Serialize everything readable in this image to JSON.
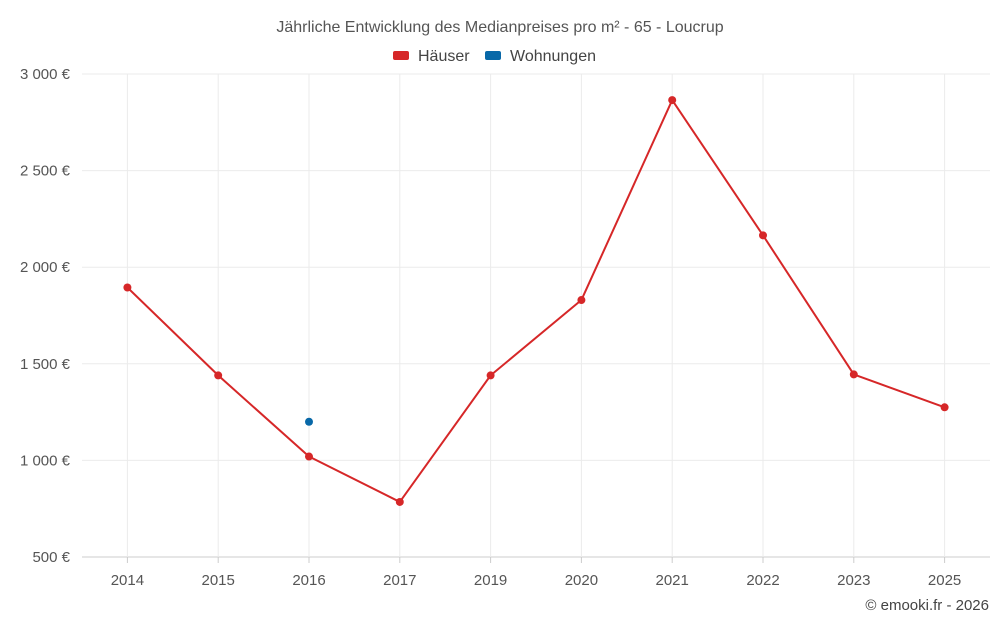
{
  "chart_data": {
    "type": "line",
    "title": "Jährliche Entwicklung des Medianpreises pro m² - 65 - Loucrup",
    "categories": [
      "2014",
      "2015",
      "2016",
      "2017",
      "2019",
      "2020",
      "2021",
      "2022",
      "2023",
      "2025"
    ],
    "series": [
      {
        "name": "Häuser",
        "color": "#d62728",
        "values": [
          1895,
          1440,
          1020,
          785,
          1440,
          1830,
          2865,
          2165,
          1445,
          1275
        ]
      },
      {
        "name": "Wohnungen",
        "color": "#0868a8",
        "values": [
          null,
          null,
          1200,
          null,
          null,
          null,
          null,
          null,
          null,
          null
        ]
      }
    ],
    "ylim": [
      500,
      3000
    ],
    "yticks": [
      500,
      1000,
      1500,
      2000,
      2500,
      3000
    ],
    "ytick_labels": [
      "500 €",
      "1 000 €",
      "1 500 €",
      "2 000 €",
      "2 500 €",
      "3 000 €"
    ],
    "xlabel": "",
    "ylabel": "",
    "grid": true,
    "legend_position": "top-center"
  },
  "credit": "© emooki.fr - 2026"
}
